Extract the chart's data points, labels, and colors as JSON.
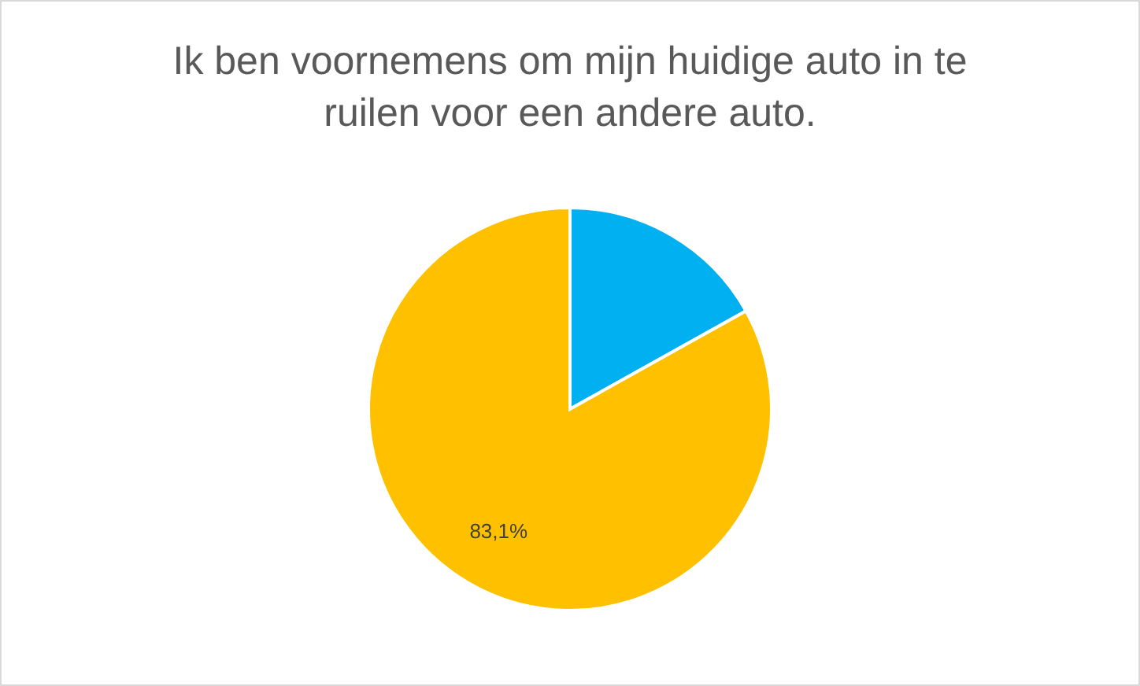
{
  "chart_data": {
    "type": "pie",
    "title": "Ik ben voornemens om mijn huidige auto in te ruilen voor een andere auto.",
    "categories": [
      null,
      null
    ],
    "values": [
      16.9,
      83.1
    ],
    "colors": [
      "#00b0f0",
      "#ffc000"
    ],
    "value_labels": [
      null,
      "83,1%"
    ]
  }
}
